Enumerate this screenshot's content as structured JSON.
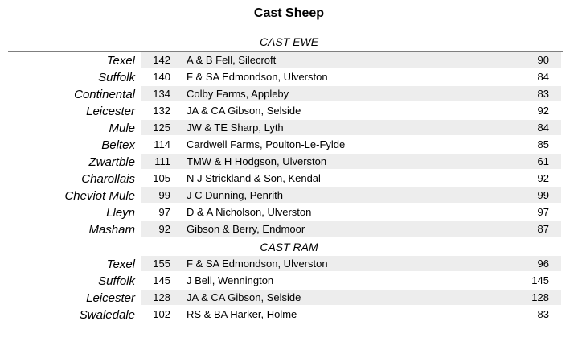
{
  "title": "Cast Sheep",
  "sections": [
    {
      "heading": "CAST EWE",
      "rows": [
        {
          "breed": "Texel",
          "number": "142",
          "exhibitor": "A & B Fell, Silecroft",
          "score": "90"
        },
        {
          "breed": "Suffolk",
          "number": "140",
          "exhibitor": "F & SA Edmondson, Ulverston",
          "score": "84"
        },
        {
          "breed": "Continental",
          "number": "134",
          "exhibitor": "Colby Farms, Appleby",
          "score": "83"
        },
        {
          "breed": "Leicester",
          "number": "132",
          "exhibitor": "JA & CA Gibson, Selside",
          "score": "92"
        },
        {
          "breed": "Mule",
          "number": "125",
          "exhibitor": "JW & TE Sharp, Lyth",
          "score": "84"
        },
        {
          "breed": "Beltex",
          "number": "114",
          "exhibitor": "Cardwell Farms, Poulton-Le-Fylde",
          "score": "85"
        },
        {
          "breed": "Zwartble",
          "number": "111",
          "exhibitor": "TMW & H Hodgson, Ulverston",
          "score": "61"
        },
        {
          "breed": "Charollais",
          "number": "105",
          "exhibitor": "N J Strickland & Son, Kendal",
          "score": "92"
        },
        {
          "breed": "Cheviot Mule",
          "number": "99",
          "exhibitor": "J C Dunning, Penrith",
          "score": "99"
        },
        {
          "breed": "Lleyn",
          "number": "97",
          "exhibitor": "D & A Nicholson, Ulverston",
          "score": "97"
        },
        {
          "breed": "Masham",
          "number": "92",
          "exhibitor": "Gibson & Berry, Endmoor",
          "score": "87"
        }
      ]
    },
    {
      "heading": "CAST RAM",
      "rows": [
        {
          "breed": "Texel",
          "number": "155",
          "exhibitor": "F & SA Edmondson, Ulverston",
          "score": "96"
        },
        {
          "breed": "Suffolk",
          "number": "145",
          "exhibitor": "J Bell, Wennington",
          "score": "145"
        },
        {
          "breed": "Leicester",
          "number": "128",
          "exhibitor": "JA & CA Gibson, Selside",
          "score": "128"
        },
        {
          "breed": "Swaledale",
          "number": "102",
          "exhibitor": "RS & BA Harker, Holme",
          "score": "83"
        }
      ]
    }
  ]
}
